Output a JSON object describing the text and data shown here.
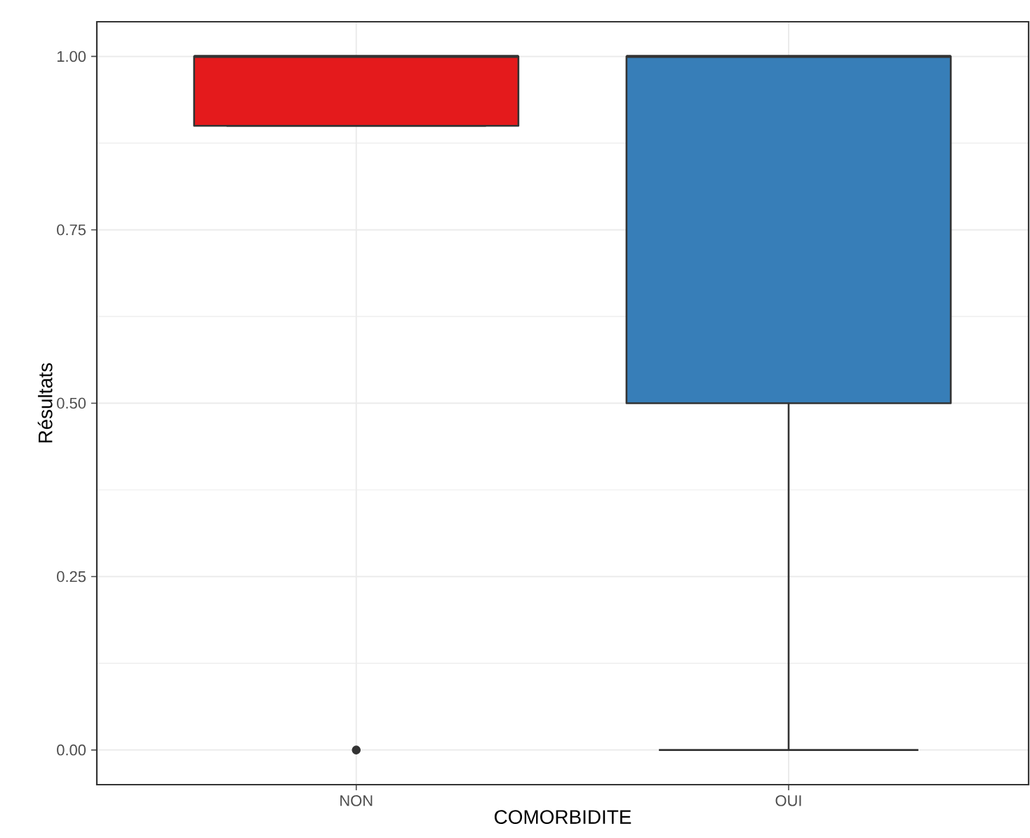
{
  "chart_data": {
    "type": "box",
    "xlabel": "COMORBIDITE",
    "ylabel": "Résultats",
    "categories": [
      "NON",
      "OUI"
    ],
    "colors": [
      "#e41a1c",
      "#377eb8"
    ],
    "boxes": [
      {
        "low": 0.9,
        "q1": 0.9,
        "median": 1.0,
        "q3": 1.0,
        "high": 1.0,
        "outliers": [
          0.0
        ]
      },
      {
        "low": 0.0,
        "q1": 0.5,
        "median": 1.0,
        "q3": 1.0,
        "high": 1.0
      }
    ],
    "ylim": [
      -0.05,
      1.05
    ],
    "yticks": [
      {
        "value": 0,
        "label": "0.00"
      },
      {
        "value": 0.25,
        "label": "0.25"
      },
      {
        "value": 0.5,
        "label": "0.50"
      },
      {
        "value": 0.75,
        "label": "0.75"
      },
      {
        "value": 1,
        "label": "1.00"
      }
    ],
    "grid": true
  }
}
